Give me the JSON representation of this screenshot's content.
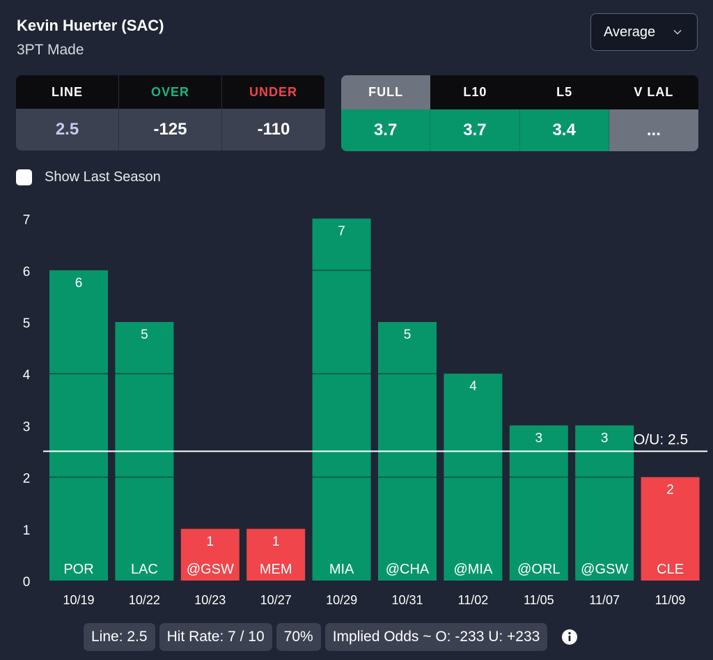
{
  "header": {
    "player": "Kevin Huerter (SAC)",
    "stat": "3PT Made",
    "aggregate_select": "Average"
  },
  "line_table": {
    "headers": [
      "LINE",
      "OVER",
      "UNDER"
    ],
    "values": [
      "2.5",
      "-125",
      "-110"
    ],
    "colors": {
      "line_value": "#c7cbf0",
      "over": "#19b582",
      "under": "#f0454a"
    }
  },
  "avg_table": {
    "headers": [
      "FULL",
      "L10",
      "L5",
      "V LAL"
    ],
    "values": [
      "3.7",
      "3.7",
      "3.4",
      "..."
    ],
    "active_tab": "FULL"
  },
  "show_last_season": {
    "label": "Show Last Season",
    "checked": false
  },
  "chart_data": {
    "type": "bar",
    "title": "",
    "xlabel": "",
    "ylabel": "",
    "ylim": [
      0,
      7
    ],
    "yticks": [
      "0",
      "1",
      "2",
      "3",
      "4",
      "5",
      "6",
      "7"
    ],
    "categories": [
      "10/19",
      "10/22",
      "10/23",
      "10/27",
      "10/29",
      "10/31",
      "11/02",
      "11/05",
      "11/07",
      "11/09"
    ],
    "opponents": [
      "POR",
      "LAC",
      "@GSW",
      "MEM",
      "MIA",
      "@CHA",
      "@MIA",
      "@ORL",
      "@GSW",
      "CLE"
    ],
    "values": [
      6,
      5,
      1,
      1,
      7,
      5,
      4,
      3,
      3,
      2
    ],
    "line_value": 2.5,
    "line_label": "O/U: 2.5",
    "colors": {
      "over": "#07966a",
      "under": "#f0454a"
    }
  },
  "footer": {
    "line": "Line: 2.5",
    "hit_rate": "Hit Rate: 7 / 10",
    "pct": "70%",
    "implied": "Implied Odds ~ O: -233 U: +233"
  }
}
